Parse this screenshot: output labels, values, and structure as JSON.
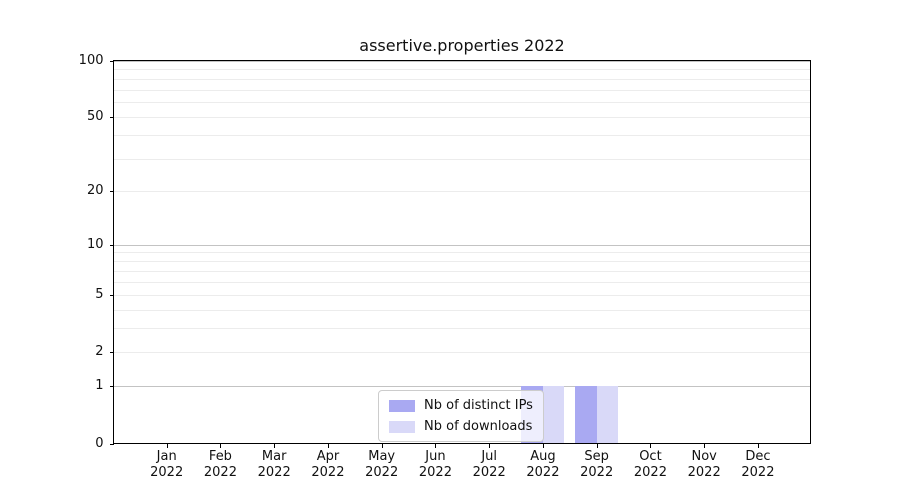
{
  "chart_data": {
    "type": "bar",
    "title": "assertive.properties 2022",
    "categories": [
      {
        "month": "Jan",
        "year": "2022"
      },
      {
        "month": "Feb",
        "year": "2022"
      },
      {
        "month": "Mar",
        "year": "2022"
      },
      {
        "month": "Apr",
        "year": "2022"
      },
      {
        "month": "May",
        "year": "2022"
      },
      {
        "month": "Jun",
        "year": "2022"
      },
      {
        "month": "Jul",
        "year": "2022"
      },
      {
        "month": "Aug",
        "year": "2022"
      },
      {
        "month": "Sep",
        "year": "2022"
      },
      {
        "month": "Oct",
        "year": "2022"
      },
      {
        "month": "Nov",
        "year": "2022"
      },
      {
        "month": "Dec",
        "year": "2022"
      }
    ],
    "series": [
      {
        "name": "Nb of distinct IPs",
        "color": "#a9a9f2",
        "values": [
          0,
          0,
          0,
          0,
          0,
          0,
          0,
          1,
          1,
          0,
          0,
          0
        ]
      },
      {
        "name": "Nb of downloads",
        "color": "#d9d9f8",
        "values": [
          0,
          0,
          0,
          0,
          0,
          0,
          0,
          1,
          1,
          0,
          0,
          0
        ]
      }
    ],
    "xlabel": "",
    "ylabel": "",
    "ylim": [
      0,
      100
    ],
    "y_scale": "log1p",
    "y_tick_values": [
      100,
      50,
      20,
      10,
      5,
      2,
      1,
      0
    ],
    "y_tick_labels": [
      "100",
      "50",
      "20",
      "10",
      "5",
      "2",
      "1",
      "0"
    ],
    "y_major_gridlines": [
      1,
      10,
      100
    ],
    "y_minor_gridlines": [
      2,
      3,
      4,
      5,
      6,
      7,
      8,
      9,
      20,
      30,
      40,
      50,
      60,
      70,
      80,
      90
    ],
    "grid": true,
    "legend_position": "lower center"
  },
  "colors": {
    "major_grid": "#c3c3c3",
    "minor_grid": "#ececec",
    "axis": "#000000",
    "legend_border": "#cccccc",
    "background": "#ffffff"
  }
}
